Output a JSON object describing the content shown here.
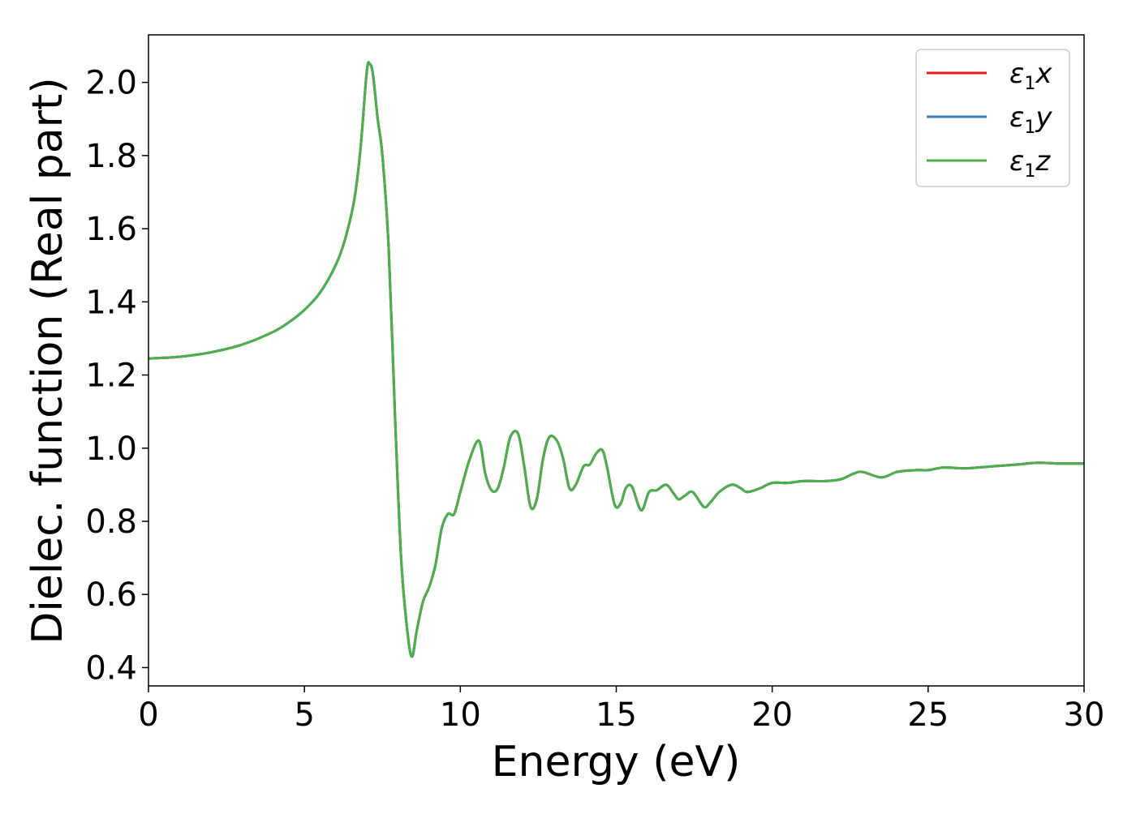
{
  "chart_data": {
    "type": "line",
    "title": "",
    "xlabel": "Energy (eV)",
    "ylabel": "Dielec. function (Real part)",
    "xlim": [
      0,
      30
    ],
    "ylim": [
      0.35,
      2.13
    ],
    "xticks": [
      0,
      5,
      10,
      15,
      20,
      25,
      30
    ],
    "xtick_labels": [
      "0",
      "5",
      "10",
      "15",
      "20",
      "25",
      "30"
    ],
    "yticks": [
      0.4,
      0.6,
      0.8,
      1.0,
      1.2,
      1.4,
      1.6,
      1.8,
      2.0
    ],
    "ytick_labels": [
      "0.4",
      "0.6",
      "0.8",
      "1.0",
      "1.2",
      "1.4",
      "1.6",
      "1.8",
      "2.0"
    ],
    "grid": false,
    "legend_position": "top-right",
    "legend": [
      {
        "base": "ε",
        "sub": "1",
        "suffix": "x",
        "color": "#e41a1c"
      },
      {
        "base": "ε",
        "sub": "1",
        "suffix": "y",
        "color": "#377eb8"
      },
      {
        "base": "ε",
        "sub": "1",
        "suffix": "z",
        "color": "#4daf4a"
      }
    ],
    "x": [
      0,
      1,
      2,
      3,
      4,
      4.5,
      5,
      5.5,
      6,
      6.3,
      6.6,
      6.8,
      7.0,
      7.1,
      7.2,
      7.35,
      7.5,
      7.7,
      7.9,
      8.1,
      8.3,
      8.45,
      8.6,
      8.8,
      9.0,
      9.2,
      9.4,
      9.6,
      9.8,
      10.0,
      10.3,
      10.6,
      10.8,
      11.0,
      11.2,
      11.4,
      11.6,
      11.85,
      12.05,
      12.25,
      12.45,
      12.65,
      12.85,
      13.1,
      13.3,
      13.5,
      13.7,
      13.95,
      14.15,
      14.35,
      14.55,
      14.7,
      14.95,
      15.15,
      15.3,
      15.5,
      15.8,
      16.05,
      16.3,
      16.6,
      16.85,
      17.0,
      17.2,
      17.45,
      17.8,
      18.0,
      18.3,
      18.7,
      19.0,
      19.2,
      19.6,
      20.0,
      20.5,
      21.0,
      21.7,
      22.2,
      22.6,
      22.9,
      23.5,
      24.0,
      24.6,
      25.0,
      25.5,
      26.2,
      27.0,
      27.8,
      28.5,
      29.2,
      30.0
    ],
    "series": [
      {
        "values": [
          1.245,
          1.25,
          1.262,
          1.283,
          1.318,
          1.344,
          1.378,
          1.425,
          1.5,
          1.57,
          1.68,
          1.82,
          2.03,
          2.05,
          2.02,
          1.9,
          1.8,
          1.55,
          1.1,
          0.7,
          0.5,
          0.43,
          0.5,
          0.58,
          0.62,
          0.68,
          0.78,
          0.82,
          0.82,
          0.88,
          0.97,
          1.02,
          0.93,
          0.885,
          0.89,
          0.95,
          1.03,
          1.04,
          0.95,
          0.84,
          0.86,
          0.97,
          1.03,
          1.02,
          0.97,
          0.89,
          0.9,
          0.95,
          0.955,
          0.985,
          0.995,
          0.95,
          0.845,
          0.85,
          0.89,
          0.895,
          0.83,
          0.88,
          0.885,
          0.9,
          0.875,
          0.86,
          0.87,
          0.88,
          0.84,
          0.85,
          0.88,
          0.9,
          0.89,
          0.88,
          0.89,
          0.905,
          0.905,
          0.91,
          0.91,
          0.915,
          0.93,
          0.935,
          0.92,
          0.935,
          0.94,
          0.94,
          0.947,
          0.945,
          0.95,
          0.955,
          0.96,
          0.958,
          0.958
        ],
        "color": "#e41a1c"
      },
      {
        "values": [
          1.245,
          1.25,
          1.262,
          1.283,
          1.318,
          1.344,
          1.378,
          1.425,
          1.5,
          1.57,
          1.68,
          1.82,
          2.03,
          2.05,
          2.02,
          1.9,
          1.8,
          1.55,
          1.1,
          0.7,
          0.5,
          0.43,
          0.5,
          0.58,
          0.62,
          0.68,
          0.78,
          0.82,
          0.82,
          0.88,
          0.97,
          1.02,
          0.93,
          0.885,
          0.89,
          0.95,
          1.03,
          1.04,
          0.95,
          0.84,
          0.86,
          0.97,
          1.03,
          1.02,
          0.97,
          0.89,
          0.9,
          0.95,
          0.955,
          0.985,
          0.995,
          0.95,
          0.845,
          0.85,
          0.89,
          0.895,
          0.83,
          0.88,
          0.885,
          0.9,
          0.875,
          0.86,
          0.87,
          0.88,
          0.84,
          0.85,
          0.88,
          0.9,
          0.89,
          0.88,
          0.89,
          0.905,
          0.905,
          0.91,
          0.91,
          0.915,
          0.93,
          0.935,
          0.92,
          0.935,
          0.94,
          0.94,
          0.947,
          0.945,
          0.95,
          0.955,
          0.96,
          0.958,
          0.958
        ],
        "color": "#377eb8"
      },
      {
        "values": [
          1.245,
          1.25,
          1.262,
          1.283,
          1.318,
          1.344,
          1.378,
          1.425,
          1.5,
          1.57,
          1.68,
          1.82,
          2.03,
          2.05,
          2.02,
          1.9,
          1.8,
          1.55,
          1.1,
          0.7,
          0.5,
          0.43,
          0.5,
          0.58,
          0.62,
          0.68,
          0.78,
          0.82,
          0.82,
          0.88,
          0.97,
          1.02,
          0.93,
          0.885,
          0.89,
          0.95,
          1.03,
          1.04,
          0.95,
          0.84,
          0.86,
          0.97,
          1.03,
          1.02,
          0.97,
          0.89,
          0.9,
          0.95,
          0.955,
          0.985,
          0.995,
          0.95,
          0.845,
          0.85,
          0.89,
          0.895,
          0.83,
          0.88,
          0.885,
          0.9,
          0.875,
          0.86,
          0.87,
          0.88,
          0.84,
          0.85,
          0.88,
          0.9,
          0.89,
          0.88,
          0.89,
          0.905,
          0.905,
          0.91,
          0.91,
          0.915,
          0.93,
          0.935,
          0.92,
          0.935,
          0.94,
          0.94,
          0.947,
          0.945,
          0.95,
          0.955,
          0.96,
          0.958,
          0.958
        ],
        "color": "#4daf4a"
      }
    ]
  }
}
